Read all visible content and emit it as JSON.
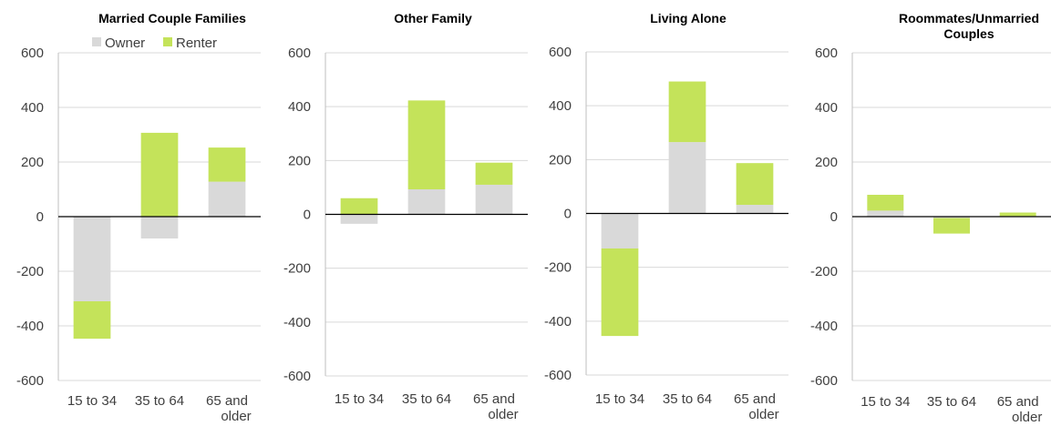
{
  "legend": {
    "owner_label": "Owner",
    "renter_label": "Renter",
    "placement": "top, first panel"
  },
  "colors": {
    "owner": "#d9d9d9",
    "renter": "#c4e35a",
    "grid": "#d9d9d9",
    "axis": "#000000"
  },
  "chart_data": [
    {
      "type": "bar",
      "stacked": true,
      "title": "Married Couple Families",
      "categories": [
        "15 to 34",
        "35 to 64",
        "65 and older"
      ],
      "series": [
        {
          "name": "Owner",
          "values": [
            -310,
            -80,
            128
          ]
        },
        {
          "name": "Renter",
          "values": [
            -137,
            307,
            125
          ]
        }
      ],
      "ylim": [
        -600,
        600
      ],
      "yticks": [
        600,
        400,
        200,
        0,
        -200,
        -400,
        -600
      ],
      "grid": true
    },
    {
      "type": "bar",
      "stacked": true,
      "title": "Other Family",
      "categories": [
        "15 to 34",
        "35 to 64",
        "65 and older"
      ],
      "series": [
        {
          "name": "Owner",
          "values": [
            -35,
            93,
            110
          ]
        },
        {
          "name": "Renter",
          "values": [
            60,
            330,
            82
          ]
        }
      ],
      "ylim": [
        -600,
        600
      ],
      "yticks": [
        600,
        400,
        200,
        0,
        -200,
        -400,
        -600
      ],
      "grid": true
    },
    {
      "type": "bar",
      "stacked": true,
      "title": "Living Alone",
      "categories": [
        "15 to 34",
        "35 to 64",
        "65 and older"
      ],
      "series": [
        {
          "name": "Owner",
          "values": [
            -130,
            265,
            32
          ]
        },
        {
          "name": "Renter",
          "values": [
            -325,
            225,
            155
          ]
        }
      ],
      "ylim": [
        -600,
        600
      ],
      "yticks": [
        600,
        400,
        200,
        0,
        -200,
        -400,
        -600
      ],
      "grid": true
    },
    {
      "type": "bar",
      "stacked": true,
      "title": "Roommates/Unmarried Couples",
      "categories": [
        "15 to 34",
        "35 to 64",
        "65 and older"
      ],
      "series": [
        {
          "name": "Owner",
          "values": [
            22,
            -5,
            2
          ]
        },
        {
          "name": "Renter",
          "values": [
            58,
            -57,
            13
          ]
        }
      ],
      "ylim": [
        -600,
        600
      ],
      "yticks": [
        600,
        400,
        200,
        0,
        -200,
        -400,
        -600
      ],
      "grid": true
    }
  ]
}
